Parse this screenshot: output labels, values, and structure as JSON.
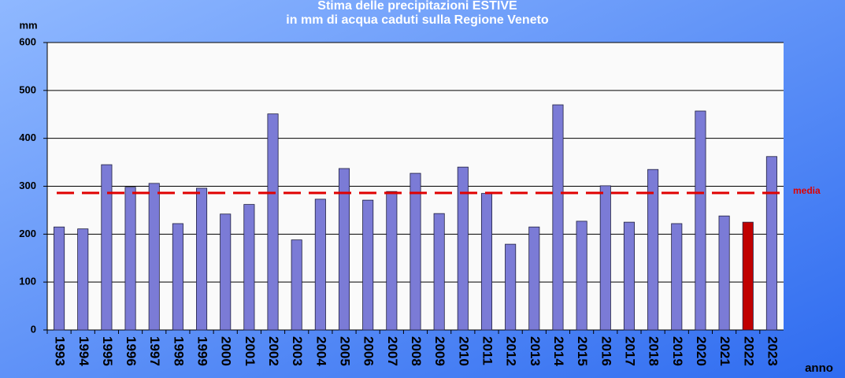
{
  "chart_data": {
    "type": "bar",
    "title": "Stima delle precipitazioni ESTIVE",
    "subtitle": "in mm di acqua caduti sulla  Regione Veneto",
    "y_label": "mm",
    "x_label": "anno",
    "categories": [
      "1993",
      "1994",
      "1995",
      "1996",
      "1997",
      "1998",
      "1999",
      "2000",
      "2001",
      "2002",
      "2003",
      "2004",
      "2005",
      "2006",
      "2007",
      "2008",
      "2009",
      "2010",
      "2011",
      "2012",
      "2013",
      "2014",
      "2015",
      "2016",
      "2017",
      "2018",
      "2019",
      "2020",
      "2021",
      "2022",
      "2023"
    ],
    "values": [
      215,
      211,
      345,
      298,
      306,
      222,
      296,
      242,
      262,
      451,
      188,
      273,
      337,
      271,
      289,
      327,
      243,
      340,
      285,
      179,
      215,
      470,
      227,
      301,
      225,
      335,
      222,
      457,
      238,
      225,
      362
    ],
    "colors": [
      "#7b7bd6",
      "#7b7bd6",
      "#7b7bd6",
      "#7b7bd6",
      "#7b7bd6",
      "#7b7bd6",
      "#7b7bd6",
      "#7b7bd6",
      "#7b7bd6",
      "#7b7bd6",
      "#7b7bd6",
      "#7b7bd6",
      "#7b7bd6",
      "#7b7bd6",
      "#7b7bd6",
      "#7b7bd6",
      "#7b7bd6",
      "#7b7bd6",
      "#7b7bd6",
      "#7b7bd6",
      "#7b7bd6",
      "#7b7bd6",
      "#7b7bd6",
      "#7b7bd6",
      "#7b7bd6",
      "#7b7bd6",
      "#7b7bd6",
      "#7b7bd6",
      "#7b7bd6",
      "#c00000",
      "#7b7bd6"
    ],
    "mean_line": {
      "label": "media",
      "value": 286,
      "color": "#e00000"
    },
    "ylim": [
      0,
      600
    ],
    "yticks": [
      0,
      100,
      200,
      300,
      400,
      500,
      600
    ],
    "grid": true
  }
}
